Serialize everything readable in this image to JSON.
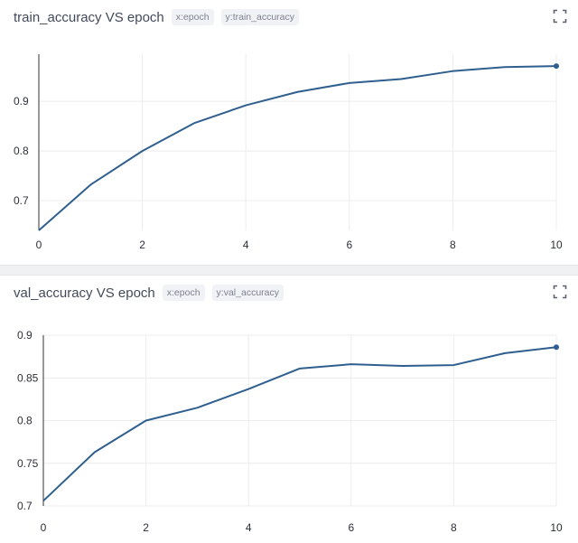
{
  "colors": {
    "line": "#2f5f8f",
    "grid": "#ececee",
    "axis": "#333333"
  },
  "icons": {
    "expand": "expand-icon"
  },
  "chart_data": [
    {
      "type": "line",
      "title": "train_accuracy VS epoch",
      "tags": [
        "x:epoch",
        "y:train_accuracy"
      ],
      "x": [
        0,
        1,
        2,
        3,
        4,
        5,
        6,
        7,
        8,
        9,
        10
      ],
      "series": [
        {
          "values": [
            0.64,
            0.732,
            0.8,
            0.856,
            0.892,
            0.919,
            0.937,
            0.945,
            0.961,
            0.969,
            0.971
          ]
        }
      ],
      "xlim": [
        0,
        10
      ],
      "ylim": [
        0.64,
        0.995
      ],
      "xticks": [
        0,
        2,
        4,
        6,
        8,
        10
      ],
      "yticks": [
        0.7,
        0.8,
        0.9
      ],
      "ytick_labels": [
        "0.7",
        "0.8",
        "0.9"
      ],
      "grid": true
    },
    {
      "type": "line",
      "title": "val_accuracy VS epoch",
      "tags": [
        "x:epoch",
        "y:val_accuracy"
      ],
      "x": [
        0,
        1,
        2,
        3,
        4,
        5,
        6,
        7,
        8,
        9,
        10
      ],
      "series": [
        {
          "values": [
            0.706,
            0.763,
            0.8,
            0.815,
            0.837,
            0.861,
            0.866,
            0.864,
            0.865,
            0.879,
            0.886
          ]
        }
      ],
      "xlim": [
        0,
        10
      ],
      "ylim": [
        0.7,
        0.9
      ],
      "xticks": [
        0,
        2,
        4,
        6,
        8,
        10
      ],
      "yticks": [
        0.7,
        0.75,
        0.8,
        0.85,
        0.9
      ],
      "ytick_labels": [
        "0.7",
        "0.75",
        "0.8",
        "0.85",
        "0.9"
      ],
      "grid": true
    }
  ]
}
